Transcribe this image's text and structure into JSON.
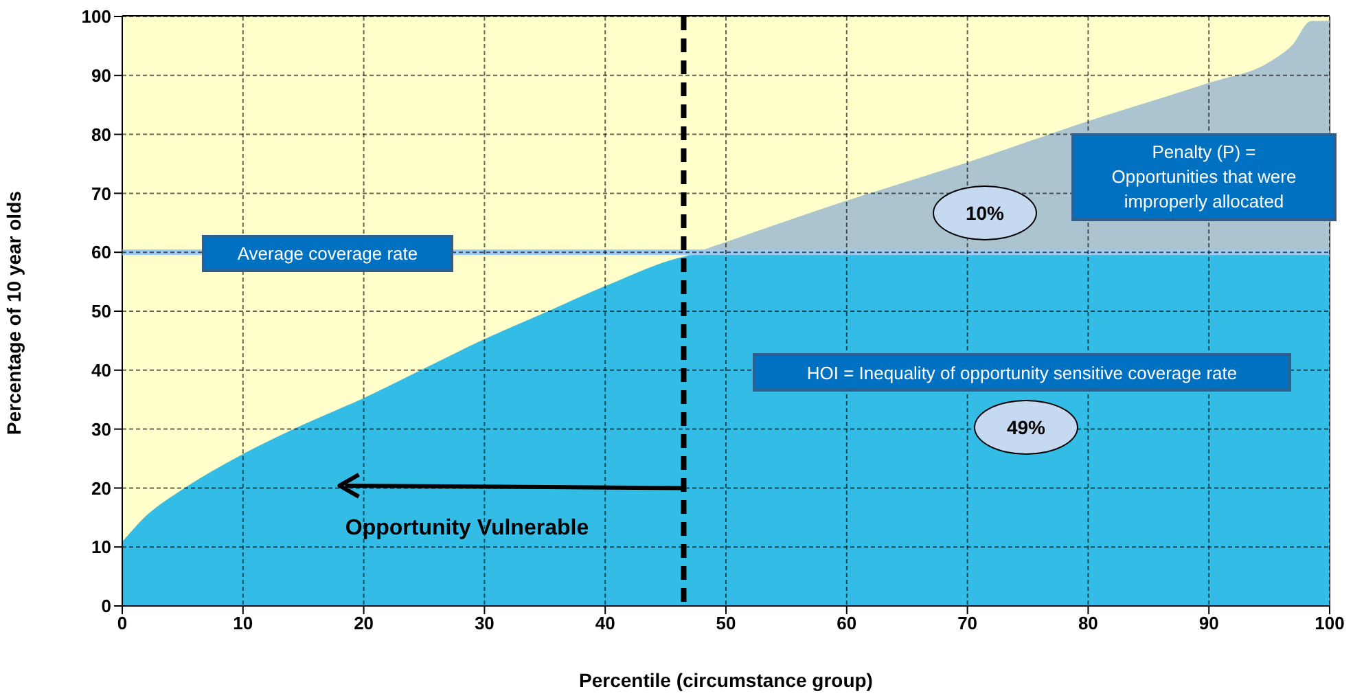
{
  "chart_data": {
    "type": "area",
    "xlabel": "Percentile (circumstance group)",
    "ylabel": "Percentage of 10 year olds",
    "x": [
      0,
      2,
      5,
      10,
      15,
      20,
      25,
      30,
      35,
      40,
      46.5,
      50,
      60,
      70,
      80,
      90,
      95,
      97,
      98.5,
      100
    ],
    "series": [
      {
        "color": "#ffffcc",
        "values": [
          100,
          100,
          100,
          100,
          100,
          100,
          100,
          100,
          100,
          100,
          100,
          100,
          100,
          100,
          100,
          100,
          100,
          100,
          100,
          100
        ]
      },
      {
        "color": "#abc4cf",
        "values": [
          10.5,
          15,
          19.5,
          25.5,
          30.5,
          35,
          40,
          45,
          49.5,
          54,
          59,
          61.5,
          68.5,
          75,
          82,
          88.5,
          92,
          95,
          99,
          99
        ]
      },
      {
        "color": "#33bde6",
        "values": [
          10.5,
          15,
          19.5,
          25.5,
          30.5,
          35,
          40,
          45,
          49.5,
          54,
          59,
          60,
          60,
          60,
          60,
          60,
          60,
          60,
          60,
          60
        ]
      }
    ],
    "xlim": [
      0,
      100
    ],
    "xticks": [
      0,
      10,
      20,
      30,
      40,
      50,
      60,
      70,
      80,
      90,
      100
    ],
    "ylim": [
      0,
      100
    ],
    "yticks": [
      0,
      10,
      20,
      30,
      40,
      50,
      60,
      70,
      80,
      90,
      100
    ],
    "grid": true,
    "ref_lines": [
      {
        "axis": "y",
        "value": 60,
        "label": "Average coverage rate",
        "color": "#9ecbf2",
        "line_style": "solid"
      },
      {
        "axis": "x",
        "value": 46.5,
        "color": "#000000",
        "line_style": "dashed"
      }
    ],
    "annotations": [
      "Penalty (P) =\nOpportunities  that were\nimproperly  allocated",
      "10%",
      "HOI = Inequality  of opportunity  sensitive coverage rate",
      "49%",
      "Opportunity Vulnerable"
    ]
  }
}
